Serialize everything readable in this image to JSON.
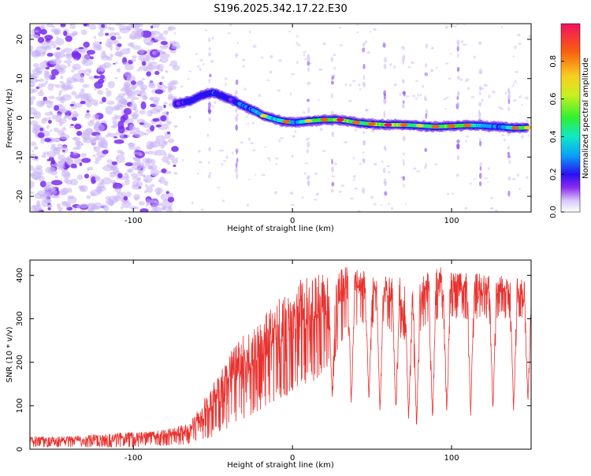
{
  "title": "S196.2025.342.17.22.E30",
  "colors": {
    "snr_line": "#e8322f",
    "axis": "#000000",
    "background": "#ffffff",
    "weak_scatter": "#c9b3f5",
    "mid_scatter": "#7a2cf0"
  },
  "chart_data": [
    {
      "type": "heatmap",
      "xlabel": "Height of straight line (km)",
      "ylabel": "Frequency (Hz)",
      "xlim": [
        -165,
        150
      ],
      "ylim": [
        -24,
        24
      ],
      "xticks": [
        -100,
        0,
        100
      ],
      "yticks": [
        -20,
        -10,
        0,
        10,
        20
      ],
      "colorbar": {
        "label": "Normalized spectral amplitude",
        "range": [
          0,
          1
        ],
        "ticks": [
          0.0,
          0.2,
          0.4,
          0.6,
          0.8
        ],
        "colormap": [
          "#ffffff",
          "#d8c8f8",
          "#8c2cf0",
          "#2a10f0",
          "#0aa0f8",
          "#10e8c8",
          "#30f030",
          "#c8f020",
          "#f8d020",
          "#f86010",
          "#f01060"
        ]
      },
      "ridge": {
        "description": "dominant frequency track",
        "x": [
          -74,
          -65,
          -58,
          -50,
          -44,
          -38,
          -32,
          -25,
          -18,
          -10,
          -4,
          2,
          10,
          20,
          30,
          40,
          50,
          60,
          70,
          80,
          90,
          100,
          110,
          120,
          130,
          140,
          148
        ],
        "y": [
          3.5,
          4.2,
          5.5,
          6.5,
          5.5,
          4.5,
          3.3,
          2.0,
          0.5,
          -0.5,
          -1.0,
          -1.2,
          -0.8,
          -0.5,
          -0.5,
          -1.2,
          -1.6,
          -1.8,
          -1.8,
          -2.0,
          -2.3,
          -2.1,
          -1.9,
          -2.0,
          -2.3,
          -2.6,
          -2.5
        ],
        "peak_amplitude": [
          0.35,
          0.4,
          0.45,
          0.5,
          0.4,
          0.35,
          0.55,
          0.5,
          0.75,
          0.6,
          0.85,
          0.55,
          0.8,
          0.9,
          0.95,
          0.85,
          0.9,
          0.95,
          0.9,
          0.75,
          0.85,
          0.9,
          0.9,
          0.6,
          0.5,
          0.85,
          0.8
        ]
      }
    },
    {
      "type": "line",
      "xlabel": "Height of straight line (km)",
      "ylabel": "SNR (10 * v/v)",
      "xlim": [
        -165,
        150
      ],
      "ylim": [
        0,
        435
      ],
      "xticks": [
        -100,
        0,
        100
      ],
      "yticks": [
        0,
        100,
        200,
        300,
        400
      ],
      "series": [
        {
          "name": "SNR",
          "envelope": {
            "x": [
              -165,
              -140,
              -120,
              -100,
              -80,
              -65,
              -55,
              -45,
              -35,
              -25,
              -15,
              -5,
              5,
              15,
              25,
              35,
              45,
              55,
              65,
              75,
              85,
              95,
              105,
              115,
              125,
              135,
              145,
              150
            ],
            "low": [
              5,
              5,
              5,
              5,
              8,
              10,
              20,
              40,
              60,
              80,
              100,
              120,
              140,
              160,
              200,
              280,
              290,
              290,
              260,
              240,
              290,
              300,
              300,
              300,
              300,
              300,
              300,
              300
            ],
            "high": [
              30,
              30,
              35,
              40,
              45,
              60,
              120,
              180,
              250,
              280,
              320,
              360,
              390,
              400,
              410,
              420,
              410,
              400,
              400,
              380,
              410,
              420,
              410,
              410,
              400,
              400,
              390,
              380
            ]
          },
          "dips": [
            {
              "x": 25,
              "value": 110
            },
            {
              "x": 37,
              "value": 100
            },
            {
              "x": 48,
              "value": 100
            },
            {
              "x": 55,
              "value": 80
            },
            {
              "x": 65,
              "value": 80
            },
            {
              "x": 73,
              "value": 60
            },
            {
              "x": 78,
              "value": 40
            },
            {
              "x": 88,
              "value": 50
            },
            {
              "x": 97,
              "value": 70
            },
            {
              "x": 112,
              "value": 70
            },
            {
              "x": 126,
              "value": 80
            },
            {
              "x": 139,
              "value": 80
            },
            {
              "x": 148,
              "value": 100
            }
          ]
        }
      ]
    }
  ]
}
